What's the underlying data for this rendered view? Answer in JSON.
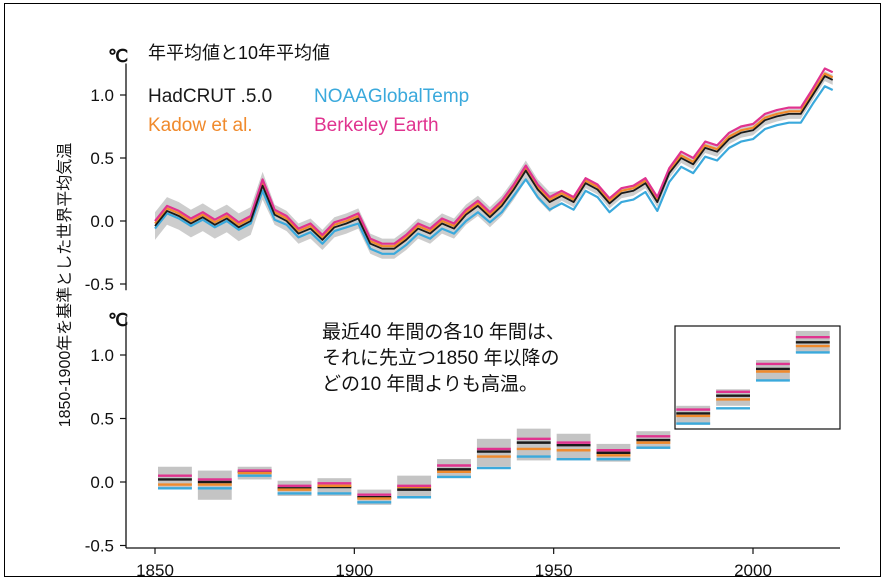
{
  "y_axis_label": "1850-1900年を基準とした世界平均気温",
  "colors": {
    "HadCRUT": "#1a1a1a",
    "NOAA": "#3aa9dc",
    "Kadow": "#f08a2c",
    "Berkeley": "#e0338f",
    "band": "#c4c4c4"
  },
  "chart_data": [
    {
      "type": "line",
      "title": "年平均値と10年平均値",
      "unit": "℃",
      "ylim": [
        -0.6,
        1.32
      ],
      "xlim": [
        1843,
        2022
      ],
      "yticks": [
        "-0.5",
        "0.0",
        "0.5",
        "1.0"
      ],
      "ytick_values": [
        -0.5,
        0.0,
        0.5,
        1.0
      ],
      "legend": [
        {
          "name": "HadCRUT .5.0",
          "key": "HadCRUT"
        },
        {
          "name": "NOAAGlobalTemp",
          "key": "NOAA"
        },
        {
          "name": "Kadow et al.",
          "key": "Kadow"
        },
        {
          "name": "Berkeley Earth",
          "key": "Berkeley"
        }
      ],
      "legend_placement": "top-left",
      "x": [
        1850,
        1853,
        1856,
        1859,
        1862,
        1865,
        1868,
        1871,
        1874,
        1877,
        1880,
        1883,
        1886,
        1889,
        1892,
        1895,
        1898,
        1901,
        1904,
        1907,
        1910,
        1913,
        1916,
        1919,
        1922,
        1925,
        1928,
        1931,
        1934,
        1937,
        1940,
        1943,
        1946,
        1949,
        1952,
        1955,
        1958,
        1961,
        1964,
        1967,
        1970,
        1973,
        1976,
        1979,
        1982,
        1985,
        1988,
        1991,
        1994,
        1997,
        2000,
        2003,
        2006,
        2009,
        2012,
        2015,
        2018,
        2020
      ],
      "series": [
        {
          "key": "HadCRUT",
          "values": [
            -0.04,
            0.08,
            0.04,
            -0.02,
            0.03,
            -0.03,
            0.02,
            -0.05,
            0.0,
            0.28,
            0.05,
            0.0,
            -0.1,
            -0.06,
            -0.15,
            -0.05,
            -0.02,
            0.02,
            -0.18,
            -0.22,
            -0.22,
            -0.15,
            -0.06,
            -0.1,
            -0.02,
            -0.06,
            0.05,
            0.12,
            0.03,
            0.12,
            0.25,
            0.4,
            0.25,
            0.15,
            0.2,
            0.15,
            0.3,
            0.25,
            0.14,
            0.22,
            0.24,
            0.3,
            0.15,
            0.38,
            0.5,
            0.45,
            0.58,
            0.55,
            0.65,
            0.7,
            0.72,
            0.8,
            0.83,
            0.85,
            0.85,
            1.0,
            1.15,
            1.12
          ]
        },
        {
          "key": "NOAA",
          "values": [
            -0.06,
            0.06,
            0.02,
            -0.04,
            0.01,
            -0.05,
            0.0,
            -0.07,
            -0.02,
            0.24,
            0.01,
            -0.03,
            -0.13,
            -0.09,
            -0.18,
            -0.08,
            -0.05,
            -0.02,
            -0.22,
            -0.26,
            -0.26,
            -0.19,
            -0.1,
            -0.14,
            -0.06,
            -0.1,
            0.0,
            0.07,
            -0.01,
            0.07,
            0.2,
            0.33,
            0.19,
            0.09,
            0.14,
            0.09,
            0.24,
            0.19,
            0.07,
            0.15,
            0.17,
            0.23,
            0.08,
            0.31,
            0.43,
            0.38,
            0.51,
            0.48,
            0.58,
            0.63,
            0.65,
            0.73,
            0.76,
            0.78,
            0.78,
            0.93,
            1.07,
            1.04
          ]
        },
        {
          "key": "Kadow",
          "values": [
            -0.02,
            0.1,
            0.06,
            0.0,
            0.05,
            -0.01,
            0.04,
            -0.03,
            0.02,
            0.3,
            0.07,
            0.02,
            -0.08,
            -0.04,
            -0.13,
            -0.03,
            0.0,
            0.04,
            -0.16,
            -0.2,
            -0.2,
            -0.13,
            -0.04,
            -0.08,
            0.0,
            -0.04,
            0.07,
            0.14,
            0.05,
            0.14,
            0.27,
            0.42,
            0.27,
            0.17,
            0.22,
            0.17,
            0.32,
            0.27,
            0.16,
            0.24,
            0.26,
            0.32,
            0.17,
            0.4,
            0.52,
            0.47,
            0.6,
            0.57,
            0.67,
            0.72,
            0.74,
            0.82,
            0.85,
            0.87,
            0.87,
            1.02,
            1.17,
            1.14
          ]
        },
        {
          "key": "Berkeley",
          "values": [
            0.0,
            0.12,
            0.08,
            0.02,
            0.07,
            0.01,
            0.06,
            -0.01,
            0.04,
            0.33,
            0.09,
            0.04,
            -0.06,
            -0.02,
            -0.11,
            -0.01,
            0.02,
            0.06,
            -0.14,
            -0.18,
            -0.18,
            -0.11,
            -0.02,
            -0.06,
            0.02,
            -0.02,
            0.09,
            0.16,
            0.07,
            0.16,
            0.29,
            0.44,
            0.29,
            0.19,
            0.24,
            0.19,
            0.34,
            0.29,
            0.18,
            0.26,
            0.28,
            0.34,
            0.19,
            0.42,
            0.55,
            0.5,
            0.63,
            0.6,
            0.7,
            0.75,
            0.77,
            0.85,
            0.88,
            0.9,
            0.9,
            1.05,
            1.21,
            1.18
          ]
        }
      ]
    },
    {
      "type": "bar",
      "unit": "℃",
      "ylim": [
        -0.5,
        1.33
      ],
      "yticks": [
        "-0.5",
        "0.0",
        "0.5",
        "1.0"
      ],
      "ytick_values": [
        -0.5,
        0.0,
        0.5,
        1.0
      ],
      "xticks": [
        "1850",
        "1900",
        "1950",
        "2000"
      ],
      "xtick_values": [
        1850,
        1900,
        1950,
        2000
      ],
      "annotation": [
        "最近40 年間の各10 年間は、",
        "それに先立つ1850 年以降の",
        "どの10 年間よりも高温。"
      ],
      "decades": [
        1850,
        1860,
        1870,
        1880,
        1890,
        1900,
        1910,
        1920,
        1930,
        1940,
        1950,
        1960,
        1970,
        1980,
        1990,
        2000,
        2010
      ],
      "band_low": [
        -0.05,
        -0.14,
        0.02,
        -0.11,
        -0.11,
        -0.18,
        -0.11,
        0.03,
        0.12,
        0.17,
        0.17,
        0.16,
        0.26,
        0.45,
        0.6,
        0.8,
        1.02
      ],
      "band_high": [
        0.12,
        0.09,
        0.12,
        0.01,
        0.03,
        -0.06,
        0.05,
        0.18,
        0.34,
        0.42,
        0.38,
        0.3,
        0.4,
        0.6,
        0.73,
        0.96,
        1.19
      ],
      "series": [
        {
          "key": "HadCRUT",
          "values": [
            0.02,
            0.0,
            0.08,
            -0.05,
            -0.04,
            -0.12,
            -0.06,
            0.1,
            0.24,
            0.31,
            0.29,
            0.23,
            0.33,
            0.54,
            0.68,
            0.89,
            1.1
          ]
        },
        {
          "key": "NOAA",
          "values": [
            -0.05,
            -0.05,
            0.05,
            -0.09,
            -0.09,
            -0.16,
            -0.12,
            0.04,
            0.11,
            0.2,
            0.18,
            0.18,
            0.27,
            0.46,
            0.58,
            0.8,
            1.02
          ]
        },
        {
          "key": "Kadow",
          "values": [
            -0.02,
            -0.02,
            0.07,
            -0.06,
            -0.03,
            -0.13,
            -0.04,
            0.08,
            0.2,
            0.26,
            0.25,
            0.21,
            0.31,
            0.52,
            0.65,
            0.87,
            1.07
          ]
        },
        {
          "key": "Berkeley",
          "values": [
            0.05,
            0.02,
            0.09,
            -0.03,
            -0.01,
            -0.1,
            -0.03,
            0.13,
            0.26,
            0.34,
            0.31,
            0.25,
            0.36,
            0.57,
            0.71,
            0.93,
            1.14
          ]
        }
      ]
    }
  ]
}
